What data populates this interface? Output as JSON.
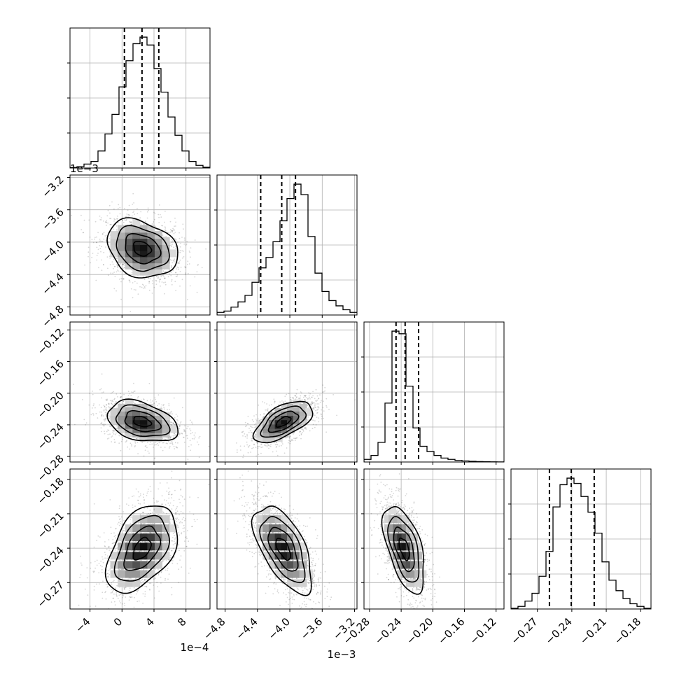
{
  "chart_data": {
    "type": "corner",
    "n_params": 4,
    "params": [
      {
        "range": [
          -0.00065,
          0.0011
        ],
        "ticks": [
          -0.0004,
          0.0,
          0.0004,
          0.0008
        ],
        "tick_labels": [
          "−4",
          "0",
          "4",
          "8"
        ],
        "offset_text": "1e−4",
        "quantiles": [
          3e-05,
          0.00025,
          0.00046
        ],
        "hist": [
          0.004,
          0.01,
          0.03,
          0.05,
          0.13,
          0.26,
          0.41,
          0.62,
          0.82,
          0.95,
          1.0,
          0.94,
          0.76,
          0.58,
          0.39,
          0.25,
          0.13,
          0.05,
          0.02,
          0.006
        ],
        "center": 0.00025,
        "spread": 0.00022
      },
      {
        "range": [
          -0.0049,
          -0.00317
        ],
        "ticks": [
          -0.0048,
          -0.0044,
          -0.004,
          -0.0036,
          -0.0032
        ],
        "tick_labels": [
          "−4.8",
          "−4.4",
          "−4.0",
          "−3.6",
          "−3.2"
        ],
        "offset_text": "1e−3",
        "quantiles": [
          -0.00436,
          -0.0041,
          -0.00393
        ],
        "hist": [
          0.02,
          0.03,
          0.06,
          0.1,
          0.15,
          0.25,
          0.36,
          0.44,
          0.56,
          0.72,
          0.89,
          1.0,
          0.92,
          0.6,
          0.32,
          0.18,
          0.11,
          0.07,
          0.04,
          0.02
        ],
        "center": -0.00408,
        "spread": 0.00018
      },
      {
        "range": [
          -0.287,
          -0.11
        ],
        "ticks": [
          -0.28,
          -0.24,
          -0.2,
          -0.16,
          -0.12
        ],
        "tick_labels": [
          "−0.28",
          "−0.24",
          "−0.20",
          "−0.16",
          "−0.12"
        ],
        "offset_text": "",
        "quantiles": [
          -0.2465,
          -0.235,
          -0.218
        ],
        "hist": [
          0.02,
          0.05,
          0.15,
          0.45,
          1.0,
          0.98,
          0.58,
          0.26,
          0.12,
          0.08,
          0.05,
          0.03,
          0.02,
          0.012,
          0.008,
          0.005,
          0.003,
          0.002,
          0.001,
          0.0005
        ],
        "center": -0.236,
        "spread": 0.013
      },
      {
        "range": [
          -0.293,
          -0.171
        ],
        "ticks": [
          -0.27,
          -0.24,
          -0.21,
          -0.18
        ],
        "tick_labels": [
          "−0.27",
          "−0.24",
          "−0.21",
          "−0.18"
        ],
        "offset_text": "",
        "quantiles": [
          -0.2595,
          -0.2405,
          -0.2205
        ],
        "hist": [
          0.005,
          0.02,
          0.06,
          0.12,
          0.25,
          0.44,
          0.78,
          0.95,
          1.0,
          0.96,
          0.86,
          0.74,
          0.58,
          0.36,
          0.22,
          0.14,
          0.08,
          0.04,
          0.02,
          0.005
        ],
        "center": -0.2405,
        "spread": 0.019
      }
    ],
    "correlations": [
      [
        1,
        -0.25,
        -0.35,
        0.45
      ],
      [
        -0.25,
        1,
        0.6,
        -0.6
      ],
      [
        -0.35,
        0.6,
        1,
        -0.55
      ],
      [
        0.45,
        -0.6,
        -0.55,
        1
      ]
    ],
    "grid": true,
    "contour_levels": 3,
    "hist_bins": 20,
    "colors": {
      "line": "#000000",
      "grid": "#b0b0b0",
      "points": "#000000",
      "density": "#000000"
    }
  }
}
